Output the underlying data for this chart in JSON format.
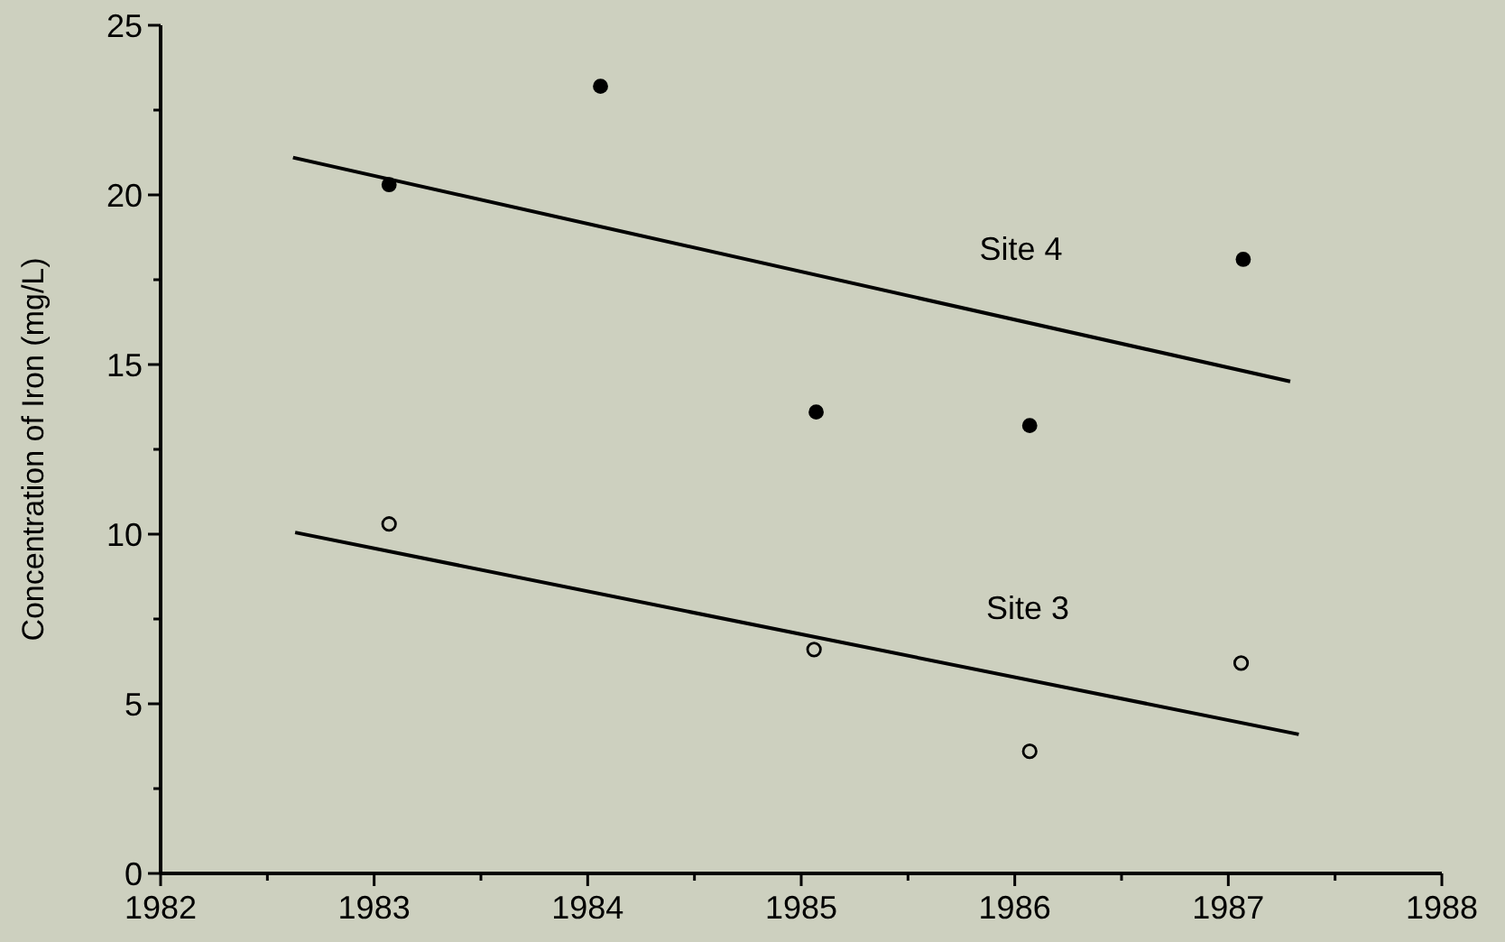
{
  "chart_data": {
    "type": "scatter",
    "ylabel": "Concentration of Iron (mg/L)",
    "xlim": [
      1982,
      1988
    ],
    "xticks": [
      1982,
      {
        "value": 1982.5,
        "label": null
      },
      1983,
      {
        "value": 1983.5,
        "label": null
      },
      1984,
      {
        "value": 1984.5,
        "label": null
      },
      1985,
      {
        "value": 1985.5,
        "label": null
      },
      1986,
      {
        "value": 1986.5,
        "label": null
      },
      1987,
      {
        "value": 1987.5,
        "label": null
      },
      1988
    ],
    "ylim": [
      0,
      25
    ],
    "yticks": [
      0,
      {
        "value": 2.5,
        "label": null
      },
      5,
      {
        "value": 7.5,
        "label": null
      },
      10,
      {
        "value": 12.5,
        "label": null
      },
      15,
      {
        "value": 17.5,
        "label": null
      },
      20,
      {
        "value": 22.5,
        "label": null
      },
      25
    ],
    "grid": false,
    "series": [
      {
        "color": "#000000",
        "marker": "circle",
        "x": [
          1983.07,
          1984.06,
          1985.07,
          1986.07,
          1987.07
        ],
        "values": [
          20.3,
          23.2,
          13.6,
          13.2,
          18.1
        ]
      },
      {
        "type": "line",
        "name": "Site 4",
        "color": "#000000",
        "line_style": "solid",
        "x": [
          1982.62,
          1987.29
        ],
        "values": [
          21.1,
          14.5
        ]
      },
      {
        "color": "#000000",
        "marker": "open circle",
        "x": [
          1983.07,
          1985.06,
          1986.07,
          1987.06
        ],
        "values": [
          10.3,
          6.6,
          3.6,
          6.2
        ]
      },
      {
        "type": "line",
        "name": "Site 3",
        "color": "#000000",
        "line_style": "solid",
        "x": [
          1982.63,
          1987.33
        ],
        "values": [
          10.05,
          4.1
        ]
      }
    ]
  }
}
